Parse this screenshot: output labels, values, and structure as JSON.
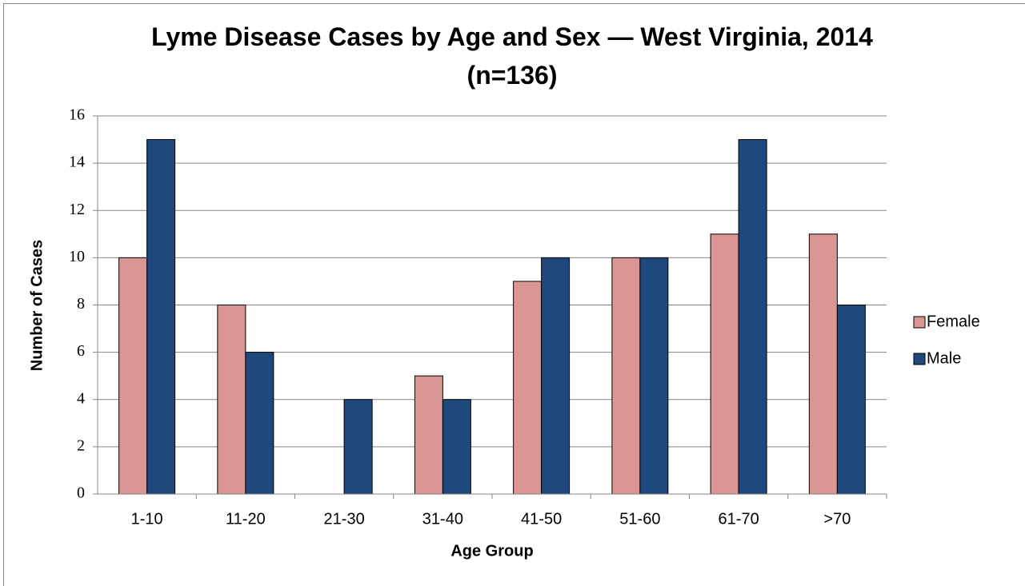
{
  "chart_data": {
    "type": "bar",
    "title": "Lyme Disease Cases by Age and Sex — West Virginia, 2014 (n=136)",
    "x_label": "Age Group",
    "y_label": "Number of Cases",
    "categories": [
      "1-10",
      "11-20",
      "21-30",
      "31-40",
      "41-50",
      "51-60",
      "61-70",
      ">70"
    ],
    "series": [
      {
        "name": "Female",
        "color": "#d99694",
        "values": [
          10,
          8,
          0,
          5,
          9,
          10,
          11,
          11
        ]
      },
      {
        "name": "Male",
        "color": "#1f497d",
        "values": [
          15,
          6,
          4,
          4,
          10,
          10,
          15,
          8
        ]
      }
    ],
    "ylim": [
      0,
      16
    ],
    "yticks": [
      0,
      2,
      4,
      6,
      8,
      10,
      12,
      14,
      16
    ],
    "grid": true,
    "legend": "right"
  }
}
